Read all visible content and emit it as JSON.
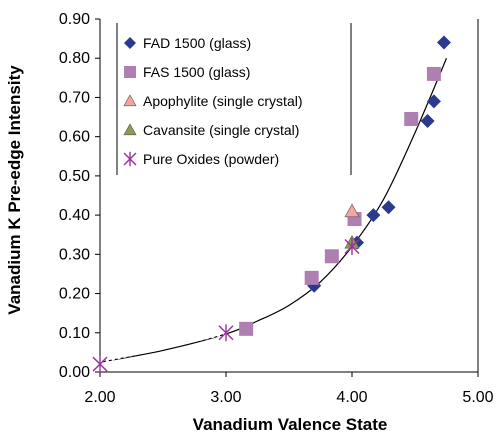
{
  "chart_data": {
    "type": "scatter",
    "title": "",
    "xlabel": "Vanadium Valence State",
    "ylabel": "Vanadium K Pre-edge Intensity",
    "xlim": [
      2.0,
      5.0
    ],
    "ylim": [
      0.0,
      0.9
    ],
    "xticks": [
      "2.00",
      "3.00",
      "4.00",
      "5.00"
    ],
    "yticks": [
      "0.00",
      "0.10",
      "0.20",
      "0.30",
      "0.40",
      "0.50",
      "0.60",
      "0.70",
      "0.80",
      "0.90"
    ],
    "grid": false,
    "legend_position": "top-left",
    "series": [
      {
        "name": "FAD 1500 (glass)",
        "marker": "diamond",
        "color": "#2b3a8c",
        "points": [
          [
            3.7,
            0.22
          ],
          [
            4.04,
            0.33
          ],
          [
            4.17,
            0.4
          ],
          [
            4.29,
            0.42
          ],
          [
            4.6,
            0.64
          ],
          [
            4.65,
            0.69
          ],
          [
            4.73,
            0.84
          ]
        ]
      },
      {
        "name": "FAS 1500 (glass)",
        "marker": "square",
        "color": "#b07fb2",
        "points": [
          [
            3.16,
            0.11
          ],
          [
            3.68,
            0.24
          ],
          [
            3.84,
            0.295
          ],
          [
            4.02,
            0.39
          ],
          [
            4.47,
            0.645
          ],
          [
            4.65,
            0.76
          ]
        ]
      },
      {
        "name": "Apophylite (single crystal)",
        "marker": "triangle",
        "color": "#f4a5a0",
        "points": [
          [
            4.0,
            0.41
          ]
        ]
      },
      {
        "name": "Cavansite (single crystal)",
        "marker": "triangle",
        "color": "#8a9b52",
        "points": [
          [
            4.0,
            0.33
          ]
        ]
      },
      {
        "name": "Pure Oxides (powder)",
        "marker": "asterisk",
        "color": "#9a2f9a",
        "points": [
          [
            2.0,
            0.02
          ],
          [
            3.0,
            0.1
          ],
          [
            4.0,
            0.32
          ]
        ]
      }
    ],
    "fit_curve": {
      "x": [
        2.0,
        2.5,
        3.0,
        3.25,
        3.5,
        3.75,
        4.0,
        4.25,
        4.5,
        4.75
      ],
      "y": [
        0.025,
        0.055,
        0.097,
        0.13,
        0.17,
        0.23,
        0.32,
        0.44,
        0.61,
        0.8
      ]
    }
  }
}
